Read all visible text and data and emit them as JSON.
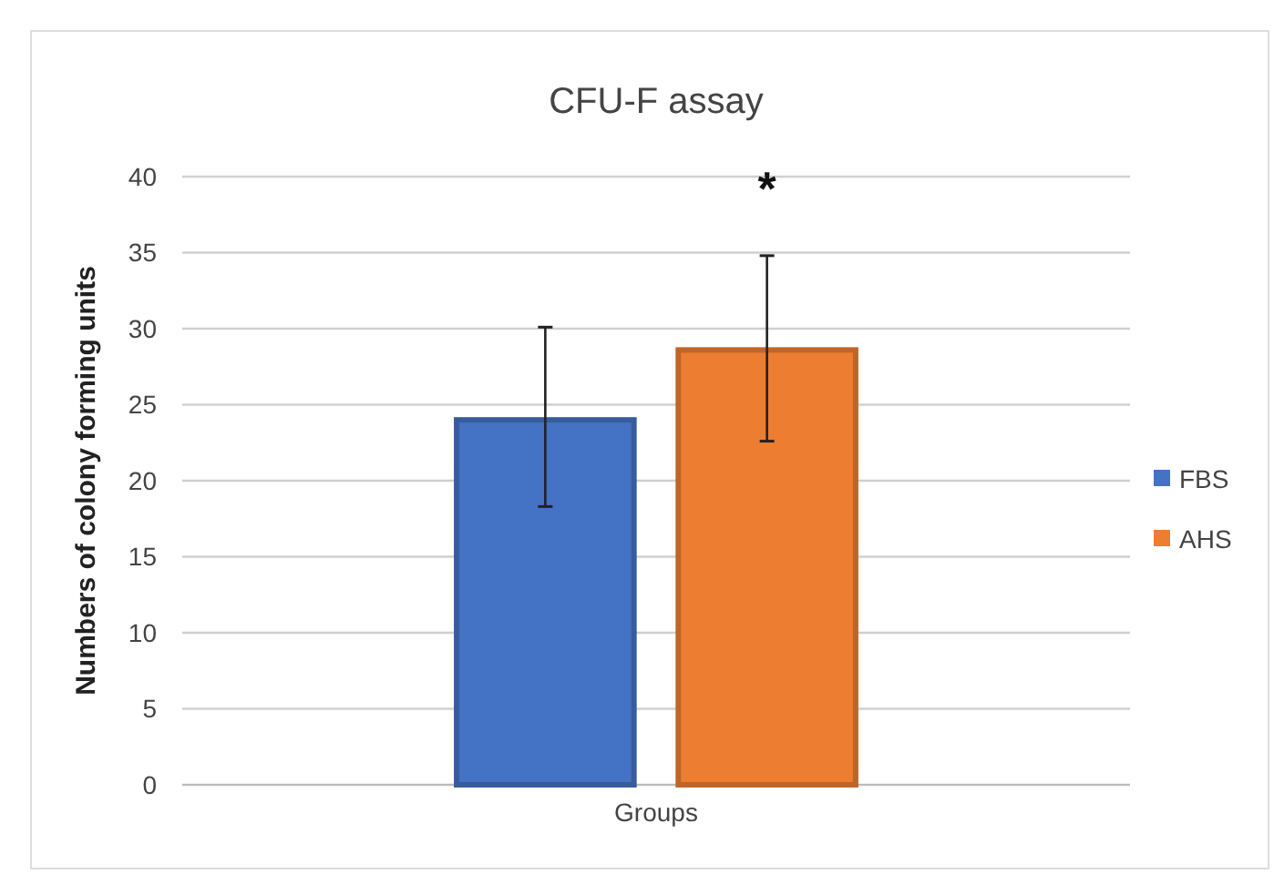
{
  "chart_data": {
    "type": "bar",
    "title": "CFU-F assay",
    "xlabel": "Groups",
    "ylabel": "Numbers of colony forming units",
    "categories": [
      null
    ],
    "series": [
      {
        "name": "FBS",
        "color": "#4472c4",
        "values": [
          24
        ],
        "errors": [
          [
            18.3,
            30.1
          ]
        ]
      },
      {
        "name": "AHS",
        "color": "#ed7d31",
        "values": [
          28.6
        ],
        "errors": [
          [
            22.6,
            34.8
          ]
        ]
      }
    ],
    "ylim": [
      0,
      40
    ],
    "yticks": [
      0,
      5,
      10,
      15,
      20,
      25,
      30,
      35,
      40
    ],
    "grid": "y",
    "legend": "right",
    "annotations": [
      "*"
    ]
  }
}
